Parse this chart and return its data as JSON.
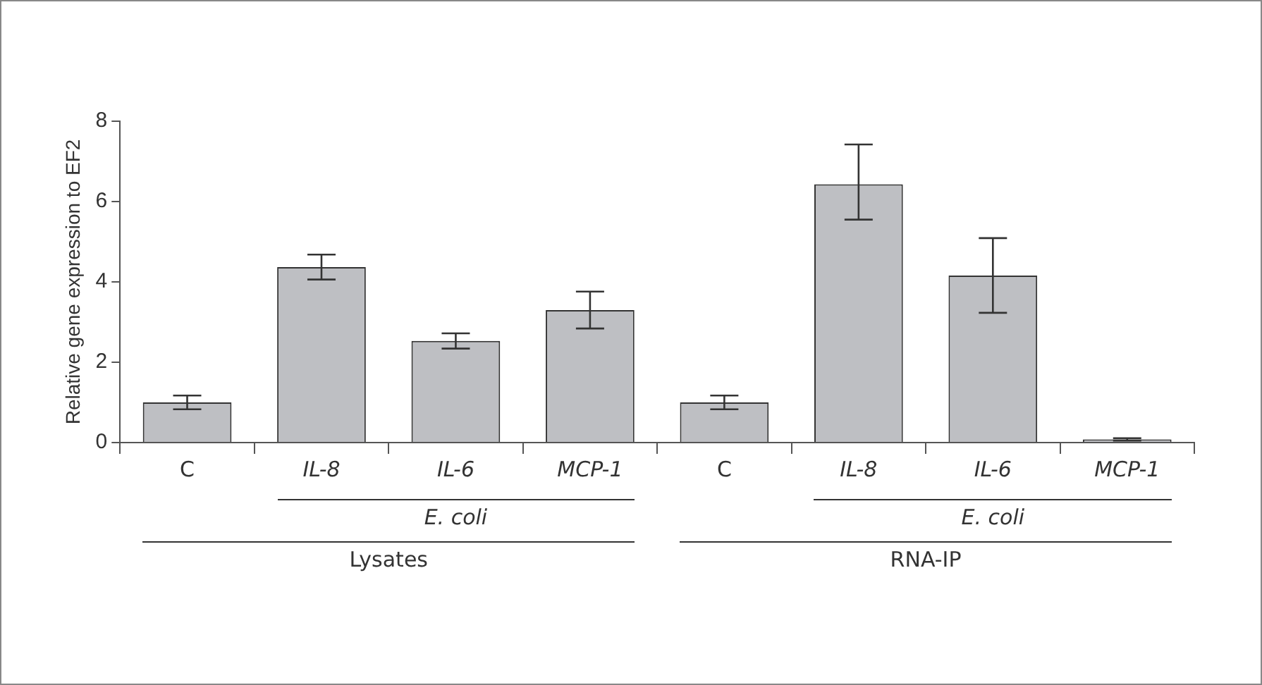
{
  "chart_data": {
    "type": "bar",
    "ylabel": "Relative gene expression to EF2",
    "categories": [
      "C",
      "IL-8",
      "IL-6",
      "MCP-1",
      "C",
      "IL-8",
      "IL-6",
      "MCP-1"
    ],
    "values": [
      1.0,
      4.37,
      2.53,
      3.3,
      1.0,
      6.43,
      4.16,
      0.08
    ],
    "errors": [
      0.17,
      0.31,
      0.19,
      0.46,
      0.17,
      [
        5.55,
        7.42
      ],
      0.93,
      0.03
    ],
    "color": "#bebfc3",
    "ylim": [
      0,
      8
    ],
    "yticks": [
      0,
      2,
      4,
      6,
      8
    ],
    "grid": false,
    "legend": false,
    "annotations": [
      "E. coli",
      "Lysates",
      "E. coli",
      "RNA-IP"
    ]
  }
}
